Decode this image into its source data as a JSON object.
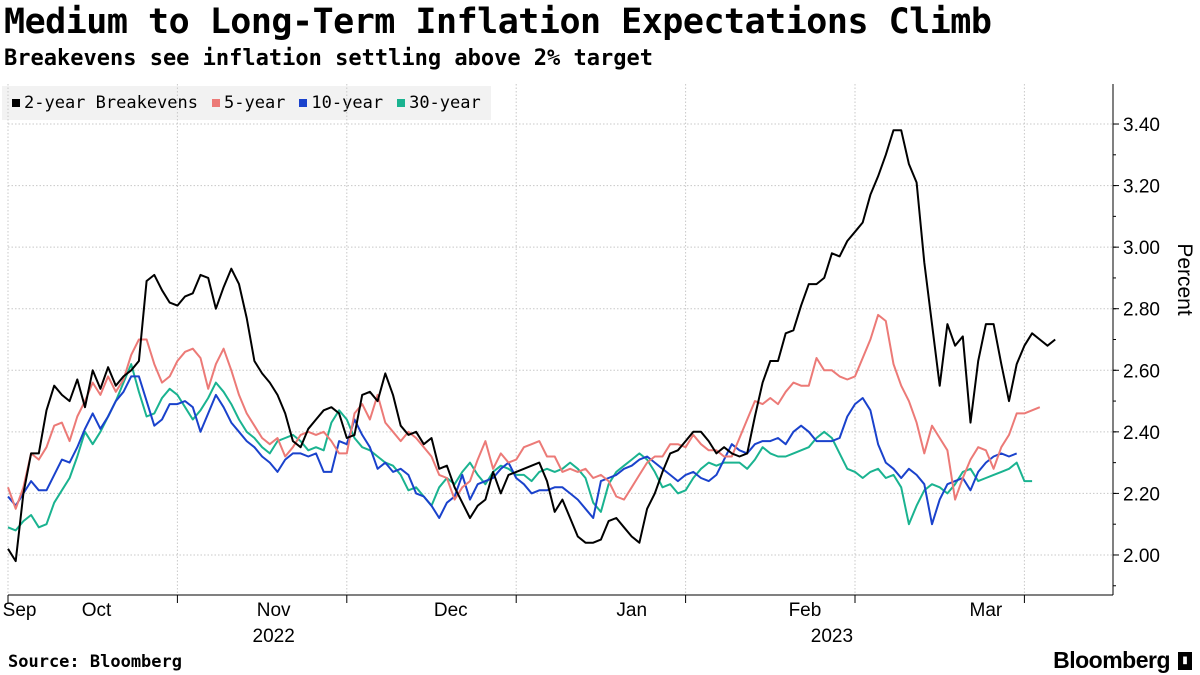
{
  "header": {
    "title": "Medium to Long-Term Inflation Expectations Climb",
    "subtitle": "Breakevens see inflation settling above 2% target"
  },
  "footer": {
    "source": "Source: Bloomberg",
    "brand": "Bloomberg"
  },
  "chart_data": {
    "type": "line",
    "title": "Medium to Long-Term Inflation Expectations Climb",
    "subtitle": "Breakevens see inflation settling above 2% target",
    "ylabel": "Percent",
    "ylim": [
      1.87,
      3.53
    ],
    "yticks": [
      2.0,
      2.2,
      2.4,
      2.6,
      2.8,
      3.0,
      3.2,
      3.4
    ],
    "ytick_labels": [
      "2.00",
      "2.20",
      "2.40",
      "2.60",
      "2.80",
      "3.00",
      "3.20",
      "3.40"
    ],
    "xlim": [
      0,
      140
    ],
    "x_tick_positions": [
      0,
      22,
      44,
      66,
      88,
      110,
      132
    ],
    "x_labels": [
      {
        "x": 1.5,
        "label": "Sep"
      },
      {
        "x": 11.5,
        "label": "Oct"
      },
      {
        "x": 34.5,
        "label": "Nov"
      },
      {
        "x": 57.5,
        "label": "Dec"
      },
      {
        "x": 81,
        "label": "Jan"
      },
      {
        "x": 103.5,
        "label": "Feb"
      },
      {
        "x": 127,
        "label": "Mar"
      }
    ],
    "year_labels": [
      {
        "x": 34.5,
        "label": "2022"
      },
      {
        "x": 107,
        "label": "2023"
      }
    ],
    "legend_placement": "top-left",
    "series": [
      {
        "name": "2-year Breakevens",
        "color": "#000000",
        "values": [
          2.02,
          1.98,
          2.2,
          2.33,
          2.33,
          2.47,
          2.55,
          2.52,
          2.5,
          2.57,
          2.48,
          2.6,
          2.54,
          2.61,
          2.55,
          2.58,
          2.6,
          2.63,
          2.89,
          2.91,
          2.86,
          2.82,
          2.81,
          2.84,
          2.85,
          2.91,
          2.9,
          2.8,
          2.87,
          2.93,
          2.88,
          2.77,
          2.63,
          2.59,
          2.56,
          2.52,
          2.46,
          2.37,
          2.35,
          2.41,
          2.44,
          2.47,
          2.48,
          2.46,
          2.38,
          2.39,
          2.52,
          2.53,
          2.5,
          2.59,
          2.52,
          2.42,
          2.39,
          2.4,
          2.36,
          2.38,
          2.28,
          2.29,
          2.22,
          2.17,
          2.12,
          2.16,
          2.18,
          2.27,
          2.2,
          2.26,
          2.27,
          2.28,
          2.29,
          2.3,
          2.24,
          2.14,
          2.18,
          2.12,
          2.06,
          2.04,
          2.04,
          2.05,
          2.11,
          2.12,
          2.09,
          2.06,
          2.04,
          2.15,
          2.2,
          2.27,
          2.33,
          2.34,
          2.37,
          2.4,
          2.4,
          2.37,
          2.33,
          2.35,
          2.33,
          2.32,
          2.33,
          2.45,
          2.56,
          2.63,
          2.63,
          2.72,
          2.73,
          2.81,
          2.88,
          2.88,
          2.9,
          2.98,
          2.97,
          3.02,
          3.05,
          3.08,
          3.17,
          3.23,
          3.3,
          3.38,
          3.38,
          3.27,
          3.21,
          2.95,
          2.75,
          2.55,
          2.75,
          2.68,
          2.71,
          2.43,
          2.63,
          2.75,
          2.75,
          2.62,
          2.5,
          2.62,
          2.68,
          2.72,
          2.7,
          2.68,
          2.7
        ]
      },
      {
        "name": "5-year",
        "color": "#ec7a77",
        "values": [
          2.22,
          2.15,
          2.22,
          2.33,
          2.31,
          2.35,
          2.42,
          2.43,
          2.37,
          2.45,
          2.5,
          2.56,
          2.52,
          2.58,
          2.53,
          2.57,
          2.65,
          2.7,
          2.7,
          2.62,
          2.56,
          2.58,
          2.63,
          2.66,
          2.67,
          2.64,
          2.54,
          2.62,
          2.67,
          2.6,
          2.52,
          2.46,
          2.42,
          2.38,
          2.36,
          2.38,
          2.32,
          2.35,
          2.39,
          2.4,
          2.39,
          2.4,
          2.37,
          2.33,
          2.33,
          2.46,
          2.49,
          2.44,
          2.52,
          2.43,
          2.4,
          2.37,
          2.4,
          2.38,
          2.35,
          2.32,
          2.26,
          2.25,
          2.18,
          2.22,
          2.24,
          2.31,
          2.37,
          2.28,
          2.33,
          2.3,
          2.31,
          2.35,
          2.36,
          2.37,
          2.32,
          2.32,
          2.27,
          2.28,
          2.27,
          2.28,
          2.25,
          2.26,
          2.24,
          2.19,
          2.18,
          2.22,
          2.26,
          2.3,
          2.32,
          2.32,
          2.36,
          2.36,
          2.35,
          2.39,
          2.36,
          2.34,
          2.34,
          2.32,
          2.32,
          2.38,
          2.44,
          2.5,
          2.49,
          2.51,
          2.49,
          2.53,
          2.56,
          2.55,
          2.55,
          2.64,
          2.6,
          2.6,
          2.58,
          2.57,
          2.58,
          2.64,
          2.7,
          2.78,
          2.76,
          2.62,
          2.55,
          2.5,
          2.43,
          2.33,
          2.42,
          2.38,
          2.34,
          2.18,
          2.25,
          2.31,
          2.35,
          2.34,
          2.28,
          2.35,
          2.39,
          2.46,
          2.46,
          2.47,
          2.48
        ]
      },
      {
        "name": "10-year",
        "color": "#1a42cc",
        "values": [
          2.19,
          2.16,
          2.2,
          2.24,
          2.21,
          2.21,
          2.26,
          2.31,
          2.3,
          2.35,
          2.41,
          2.46,
          2.41,
          2.45,
          2.5,
          2.53,
          2.58,
          2.58,
          2.5,
          2.42,
          2.44,
          2.49,
          2.49,
          2.5,
          2.48,
          2.4,
          2.46,
          2.52,
          2.48,
          2.43,
          2.4,
          2.37,
          2.35,
          2.32,
          2.3,
          2.27,
          2.31,
          2.33,
          2.33,
          2.32,
          2.33,
          2.27,
          2.27,
          2.37,
          2.36,
          2.44,
          2.39,
          2.35,
          2.28,
          2.3,
          2.27,
          2.28,
          2.26,
          2.2,
          2.19,
          2.16,
          2.12,
          2.17,
          2.19,
          2.26,
          2.18,
          2.23,
          2.24,
          2.25,
          2.28,
          2.3,
          2.25,
          2.23,
          2.2,
          2.21,
          2.21,
          2.22,
          2.22,
          2.2,
          2.18,
          2.15,
          2.12,
          2.24,
          2.25,
          2.26,
          2.28,
          2.29,
          2.31,
          2.32,
          2.3,
          2.28,
          2.26,
          2.24,
          2.26,
          2.27,
          2.25,
          2.24,
          2.26,
          2.31,
          2.36,
          2.34,
          2.33,
          2.36,
          2.37,
          2.37,
          2.38,
          2.36,
          2.4,
          2.42,
          2.4,
          2.37,
          2.37,
          2.37,
          2.38,
          2.45,
          2.49,
          2.51,
          2.47,
          2.36,
          2.3,
          2.28,
          2.25,
          2.28,
          2.26,
          2.23,
          2.1,
          2.18,
          2.23,
          2.24,
          2.25,
          2.21,
          2.27,
          2.3,
          2.32,
          2.33,
          2.32,
          2.33
        ]
      },
      {
        "name": "30-year",
        "color": "#1ab390",
        "values": [
          2.09,
          2.08,
          2.11,
          2.13,
          2.09,
          2.1,
          2.17,
          2.21,
          2.25,
          2.32,
          2.4,
          2.36,
          2.4,
          2.45,
          2.5,
          2.56,
          2.62,
          2.53,
          2.45,
          2.46,
          2.51,
          2.54,
          2.52,
          2.48,
          2.44,
          2.47,
          2.51,
          2.56,
          2.53,
          2.49,
          2.44,
          2.4,
          2.38,
          2.35,
          2.33,
          2.37,
          2.38,
          2.39,
          2.37,
          2.34,
          2.35,
          2.34,
          2.43,
          2.47,
          2.44,
          2.38,
          2.35,
          2.34,
          2.32,
          2.3,
          2.29,
          2.26,
          2.21,
          2.22,
          2.19,
          2.16,
          2.22,
          2.25,
          2.23,
          2.27,
          2.3,
          2.26,
          2.23,
          2.27,
          2.29,
          2.28,
          2.26,
          2.26,
          2.24,
          2.27,
          2.28,
          2.27,
          2.28,
          2.3,
          2.28,
          2.25,
          2.17,
          2.14,
          2.23,
          2.27,
          2.29,
          2.31,
          2.33,
          2.31,
          2.27,
          2.22,
          2.23,
          2.2,
          2.21,
          2.25,
          2.28,
          2.3,
          2.29,
          2.3,
          2.3,
          2.3,
          2.28,
          2.31,
          2.35,
          2.33,
          2.32,
          2.32,
          2.33,
          2.34,
          2.35,
          2.38,
          2.4,
          2.38,
          2.33,
          2.28,
          2.27,
          2.25,
          2.27,
          2.28,
          2.25,
          2.26,
          2.22,
          2.1,
          2.16,
          2.21,
          2.23,
          2.22,
          2.2,
          2.23,
          2.27,
          2.28,
          2.24,
          2.25,
          2.26,
          2.27,
          2.28,
          2.3,
          2.24,
          2.24
        ]
      }
    ]
  }
}
